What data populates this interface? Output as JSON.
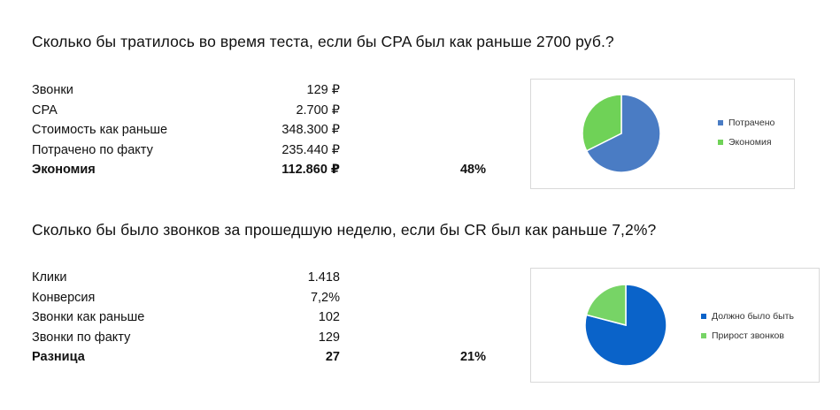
{
  "section1": {
    "heading": "Сколько бы тратилось во время теста, если бы CPA был как раньше 2700 руб.?",
    "rows": [
      {
        "label": "Звонки",
        "value": "129 ₽",
        "pct": ""
      },
      {
        "label": "CPA",
        "value": "2.700 ₽",
        "pct": ""
      },
      {
        "label": "Стоимость как раньше",
        "value": "348.300 ₽",
        "pct": ""
      },
      {
        "label": "Потрачено по факту",
        "value": "235.440 ₽",
        "pct": ""
      },
      {
        "label": "Экономия",
        "value": "112.860 ₽",
        "pct": "48%"
      }
    ]
  },
  "section2": {
    "heading": "Сколько бы было звонков за прошедшую неделю, если бы CR был как раньше 7,2%?",
    "rows": [
      {
        "label": "Клики",
        "value": "1.418",
        "pct": ""
      },
      {
        "label": "Конверсия",
        "value": "7,2%",
        "pct": ""
      },
      {
        "label": "Звонки как раньше",
        "value": "102",
        "pct": ""
      },
      {
        "label": "Звонки по факту",
        "value": "129",
        "pct": ""
      },
      {
        "label": "Разница",
        "value": "27",
        "pct": "21%"
      }
    ]
  },
  "chart_data": [
    {
      "type": "pie",
      "title": "",
      "legend_position": "right",
      "series": [
        {
          "name": "Потрачено",
          "value": 235440,
          "color": "#4a7cc4"
        },
        {
          "name": "Экономия",
          "value": 112860,
          "color": "#6fd257"
        }
      ]
    },
    {
      "type": "pie",
      "title": "",
      "legend_position": "right",
      "series": [
        {
          "name": "Должно было быть",
          "value": 102,
          "color": "#0a63c9"
        },
        {
          "name": "Прирост звонков",
          "value": 27,
          "color": "#77d466"
        }
      ]
    }
  ]
}
